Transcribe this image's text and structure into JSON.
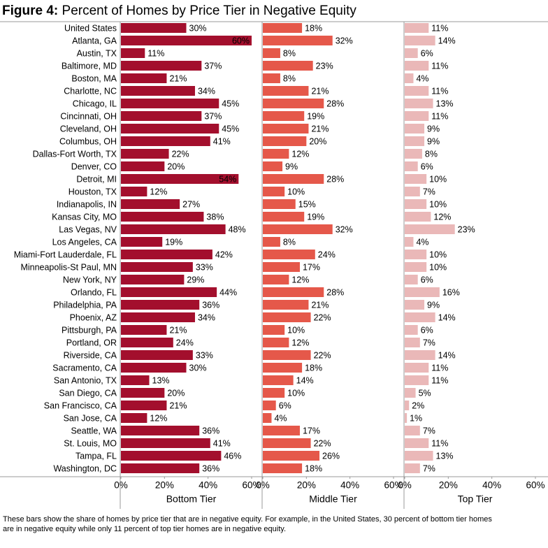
{
  "chart_data": {
    "type": "bar",
    "orientation": "horizontal",
    "figure_label": "Figure 4:",
    "title": "Percent of Homes by Price Tier in Negative Equity",
    "categories": [
      "United States",
      "Atlanta, GA",
      "Austin, TX",
      "Baltimore, MD",
      "Boston, MA",
      "Charlotte, NC",
      "Chicago, IL",
      "Cincinnati, OH",
      "Cleveland, OH",
      "Columbus, OH",
      "Dallas-Fort Worth, TX",
      "Denver, CO",
      "Detroit, MI",
      "Houston, TX",
      "Indianapolis, IN",
      "Kansas City, MO",
      "Las Vegas, NV",
      "Los Angeles, CA",
      "Miami-Fort Lauderdale, FL",
      "Minneapolis-St Paul, MN",
      "New York, NY",
      "Orlando, FL",
      "Philadelphia, PA",
      "Phoenix, AZ",
      "Pittsburgh, PA",
      "Portland, OR",
      "Riverside, CA",
      "Sacramento, CA",
      "San Antonio, TX",
      "San Diego, CA",
      "San Francisco, CA",
      "San Jose, CA",
      "Seattle, WA",
      "St. Louis, MO",
      "Tampa, FL",
      "Washington, DC"
    ],
    "series": [
      {
        "name": "Bottom Tier",
        "color": "#a30f2d",
        "values": [
          30,
          60,
          11,
          37,
          21,
          34,
          45,
          37,
          45,
          41,
          22,
          20,
          54,
          12,
          27,
          38,
          48,
          19,
          42,
          33,
          29,
          44,
          36,
          34,
          21,
          24,
          33,
          30,
          13,
          20,
          21,
          12,
          36,
          41,
          46,
          36
        ],
        "value_labels": [
          "30%",
          "60%",
          "11%",
          "37%",
          "21%",
          "34%",
          "45%",
          "37%",
          "45%",
          "41%",
          "22%",
          "20%",
          "54%",
          "12%",
          "27%",
          "38%",
          "48%",
          "19%",
          "42%",
          "33%",
          "29%",
          "44%",
          "36%",
          "34%",
          "21%",
          "24%",
          "33%",
          "30%",
          "13%",
          "20%",
          "21%",
          "12%",
          "36%",
          "41%",
          "46%",
          "36%"
        ]
      },
      {
        "name": "Middle Tier",
        "color": "#e5584a",
        "values": [
          18,
          32,
          8,
          23,
          8,
          21,
          28,
          19,
          21,
          20,
          12,
          9,
          28,
          10,
          15,
          19,
          32,
          8,
          24,
          17,
          12,
          28,
          21,
          22,
          10,
          12,
          22,
          18,
          14,
          10,
          6,
          4,
          17,
          22,
          26,
          18
        ],
        "value_labels": [
          "18%",
          "32%",
          "8%",
          "23%",
          "8%",
          "21%",
          "28%",
          "19%",
          "21%",
          "20%",
          "12%",
          "9%",
          "28%",
          "10%",
          "15%",
          "19%",
          "32%",
          "8%",
          "24%",
          "17%",
          "12%",
          "28%",
          "21%",
          "22%",
          "10%",
          "12%",
          "22%",
          "18%",
          "14%",
          "10%",
          "6%",
          "4%",
          "17%",
          "22%",
          "26%",
          "18%"
        ]
      },
      {
        "name": "Top Tier",
        "color": "#eab8b8",
        "values": [
          11,
          14,
          6,
          11,
          4,
          11,
          13,
          11,
          9,
          9,
          8,
          6,
          10,
          7,
          10,
          12,
          23,
          4,
          10,
          10,
          6,
          16,
          9,
          14,
          6,
          7,
          14,
          11,
          11,
          5,
          2,
          1,
          7,
          11,
          13,
          7
        ],
        "value_labels": [
          "11%",
          "14%",
          "6%",
          "11%",
          "4%",
          "11%",
          "13%",
          "11%",
          "9%",
          "9%",
          "8%",
          "6%",
          "10%",
          "7%",
          "10%",
          "12%",
          "23%",
          "4%",
          "10%",
          "10%",
          "6%",
          "16%",
          "9%",
          "14%",
          "6%",
          "7%",
          "14%",
          "11%",
          "11%",
          "5%",
          "2%",
          "1%",
          "7%",
          "11%",
          "13%",
          "7%"
        ]
      }
    ],
    "xlim": [
      0,
      60
    ],
    "xticks": [
      {
        "value": 0,
        "label": "0%"
      },
      {
        "value": 20,
        "label": "20%"
      },
      {
        "value": 40,
        "label": "40%"
      },
      {
        "value": 60,
        "label": "60%"
      }
    ],
    "note": [
      "These bars show the share of homes by price tier that are in negative equity.  For example, in the United States, 30 percent of bottom tier homes",
      "are in negative equity while only 11 percent of top tier homes are in negative equity."
    ]
  }
}
